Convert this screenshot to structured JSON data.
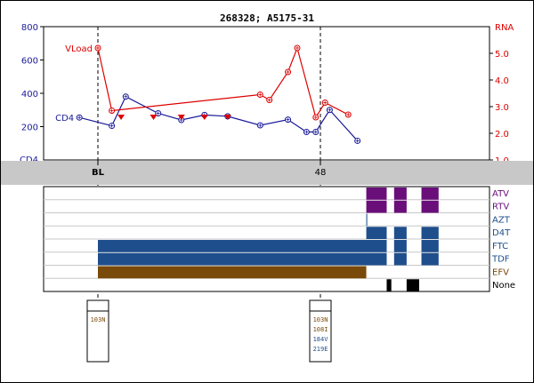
{
  "chart_data": {
    "type": "line",
    "title": "268328; A5175-31",
    "left_axis": {
      "label": "CD4",
      "ticks": [
        "800",
        "600",
        "400",
        "200"
      ],
      "ylim": [
        0,
        800
      ]
    },
    "right_axis": {
      "label": "RNA",
      "ticks": [
        "5.0",
        "4.0",
        "3.0",
        "2.0",
        "1.0"
      ],
      "ylim": [
        1.0,
        6.0
      ]
    },
    "series": [
      {
        "name": "CD4",
        "axis": "left",
        "color": "#1a1a9a",
        "x": [
          -4,
          3,
          6,
          13,
          18,
          23,
          28,
          35,
          41,
          45,
          47,
          50,
          56
        ],
        "y": [
          255,
          205,
          380,
          280,
          240,
          270,
          262,
          208,
          242,
          168,
          168,
          300,
          115
        ]
      },
      {
        "name": "VLoad",
        "axis": "right",
        "color": "#dd0000",
        "x": [
          0,
          3,
          35,
          37,
          41,
          43,
          47,
          49,
          54
        ],
        "y": [
          5.2,
          2.85,
          3.45,
          3.25,
          4.3,
          5.2,
          2.6,
          3.15,
          2.7
        ]
      }
    ],
    "undetectable_markers": {
      "color": "#dd0000",
      "x": [
        5,
        12,
        18,
        23,
        28
      ],
      "y": [
        2.6,
        2.6,
        2.6,
        2.6,
        2.6
      ]
    },
    "timeline": {
      "ticks": [
        {
          "label": "BL",
          "x": 0
        },
        {
          "label": "48",
          "x": 48
        }
      ]
    },
    "drug_rows": [
      "ATV",
      "RTV",
      "AZT",
      "D4T",
      "FTC",
      "TDF",
      "EFV",
      "None"
    ],
    "drug_row_colors": [
      "#6a0f7a",
      "#6a0f7a",
      "#1f4e8c",
      "#1f4e8c",
      "#1f4e8c",
      "#1f4e8c",
      "#7a4a0a",
      "#000000"
    ],
    "drug_bars": [
      {
        "row": "ATV",
        "color": "#6a0f7a",
        "start": 57.9,
        "end": 62.3
      },
      {
        "row": "ATV",
        "color": "#6a0f7a",
        "start": 63.9,
        "end": 66.6
      },
      {
        "row": "ATV",
        "color": "#6a0f7a",
        "start": 69.8,
        "end": 73.5
      },
      {
        "row": "RTV",
        "color": "#6a0f7a",
        "start": 57.9,
        "end": 62.3
      },
      {
        "row": "RTV",
        "color": "#6a0f7a",
        "start": 63.9,
        "end": 66.6
      },
      {
        "row": "RTV",
        "color": "#6a0f7a",
        "start": 69.8,
        "end": 73.5
      },
      {
        "row": "AZT",
        "color": "#1f4e8c",
        "start": 57.9,
        "end": 58.1
      },
      {
        "row": "D4T",
        "color": "#1f4e8c",
        "start": 57.9,
        "end": 62.3
      },
      {
        "row": "D4T",
        "color": "#1f4e8c",
        "start": 63.9,
        "end": 66.6
      },
      {
        "row": "D4T",
        "color": "#1f4e8c",
        "start": 69.8,
        "end": 73.5
      },
      {
        "row": "FTC",
        "color": "#1f4e8c",
        "start": 0,
        "end": 62.3
      },
      {
        "row": "FTC",
        "color": "#1f4e8c",
        "start": 63.9,
        "end": 66.6
      },
      {
        "row": "FTC",
        "color": "#1f4e8c",
        "start": 69.8,
        "end": 73.5
      },
      {
        "row": "TDF",
        "color": "#1f4e8c",
        "start": 0,
        "end": 62.3
      },
      {
        "row": "TDF",
        "color": "#1f4e8c",
        "start": 63.9,
        "end": 66.6
      },
      {
        "row": "TDF",
        "color": "#1f4e8c",
        "start": 69.8,
        "end": 73.5
      },
      {
        "row": "EFV",
        "color": "#7a4a0a",
        "start": 0,
        "end": 57.9
      },
      {
        "row": "None",
        "color": "#000000",
        "start": 62.3,
        "end": 63.3
      },
      {
        "row": "None",
        "color": "#000000",
        "start": 66.6,
        "end": 69.3
      }
    ],
    "mutation_boxes": [
      {
        "x": 0,
        "mutations": [
          {
            "text": "103N",
            "color": "#7a4a0a"
          }
        ]
      },
      {
        "x": 48,
        "mutations": [
          {
            "text": "103N",
            "color": "#7a4a0a"
          },
          {
            "text": "108I",
            "color": "#7a4a0a"
          },
          {
            "text": "184V",
            "color": "#1f4e8c"
          },
          {
            "text": "219E",
            "color": "#1f4e8c"
          }
        ]
      }
    ]
  }
}
